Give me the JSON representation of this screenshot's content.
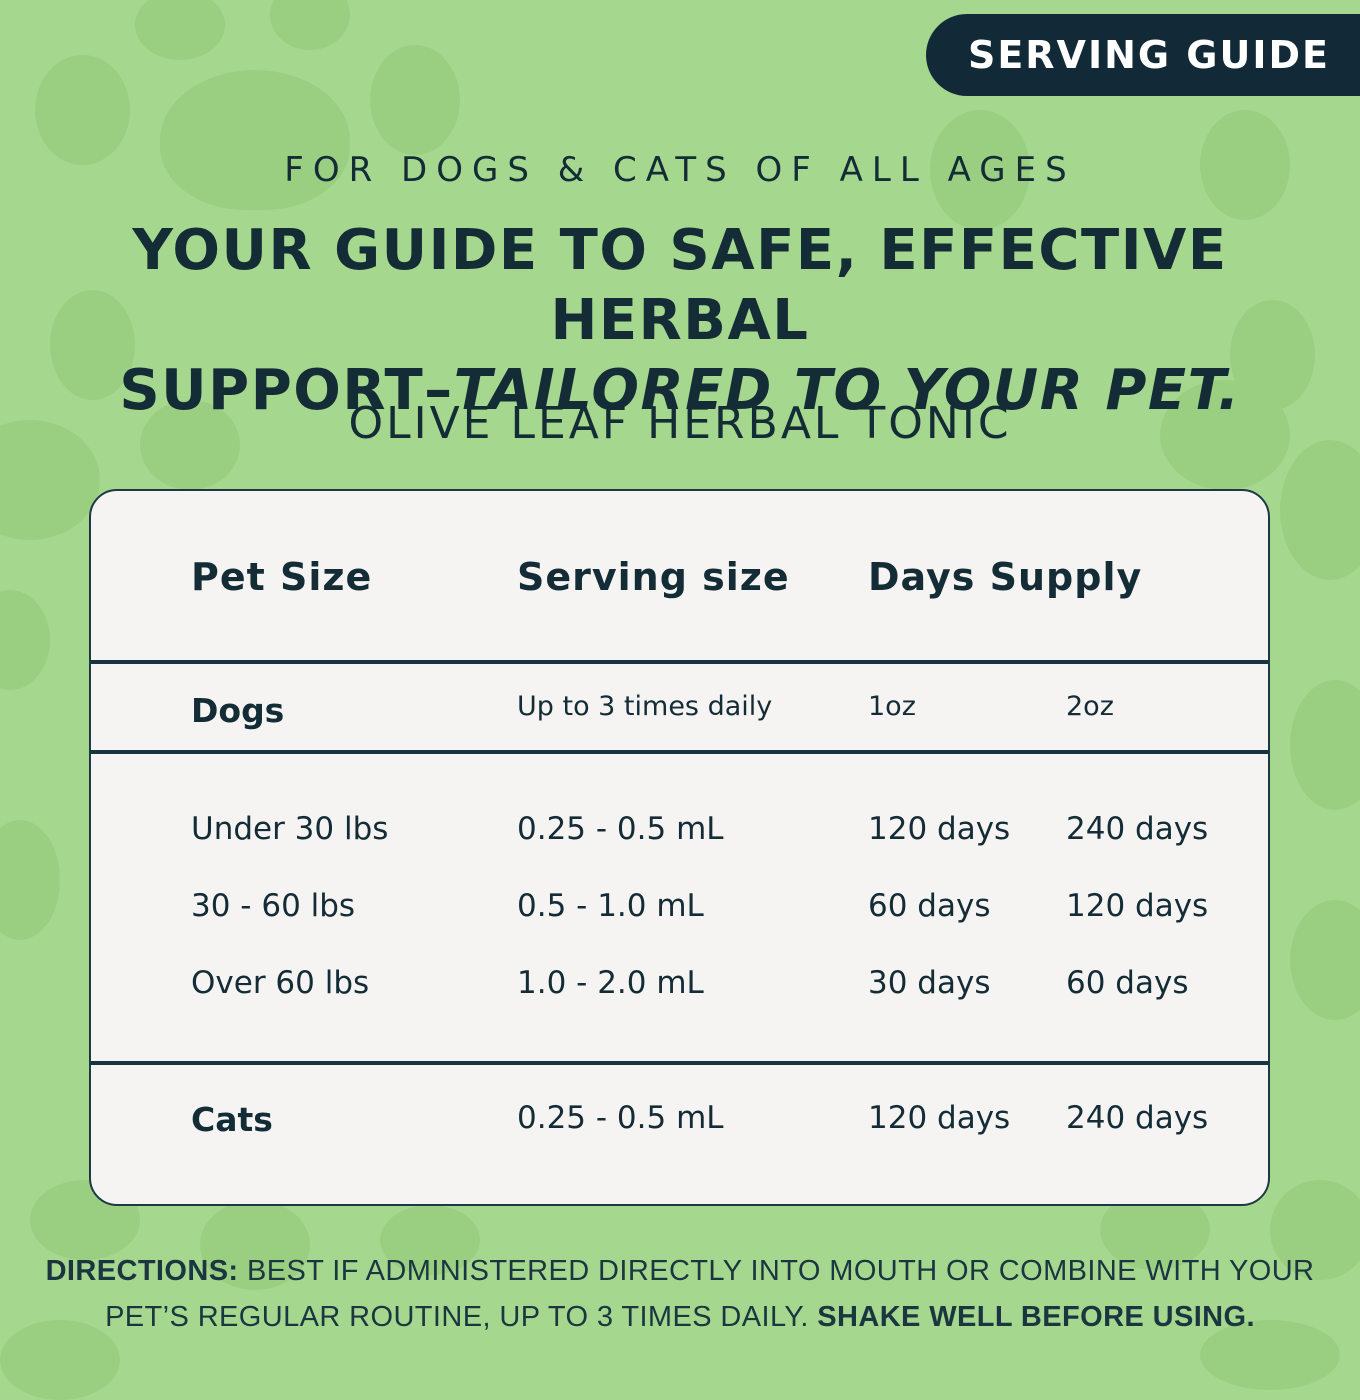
{
  "badge": {
    "label": "SERVING GUIDE"
  },
  "eyebrow": "FOR DOGS & CATS OF ALL AGES",
  "headline": {
    "line1": "YOUR GUIDE TO SAFE, EFFECTIVE HERBAL",
    "line2_plain": "SUPPORT",
    "line2_dash": "–",
    "line2_italic": "TAILORED TO YOUR PET."
  },
  "product_name": "OLIVE LEAF HERBAL TONIC",
  "table": {
    "headers": {
      "pet_size": "Pet Size",
      "serving_size": "Serving size",
      "days_supply": "Days Supply"
    },
    "dogs": {
      "label": "Dogs",
      "frequency": "Up to 3 times daily",
      "size_1": "1oz",
      "size_2": "2oz",
      "rows": [
        {
          "pet_size": "Under 30 lbs",
          "serving": "0.25 - 0.5 mL",
          "supply_1oz": "120 days",
          "supply_2oz": "240 days"
        },
        {
          "pet_size": "30 - 60 lbs",
          "serving": "0.5 - 1.0 mL",
          "supply_1oz": "60 days",
          "supply_2oz": "120 days"
        },
        {
          "pet_size": "Over 60 lbs",
          "serving": "1.0 - 2.0 mL",
          "supply_1oz": "30 days",
          "supply_2oz": "60 days"
        }
      ]
    },
    "cats": {
      "label": "Cats",
      "serving": "0.25 - 0.5 mL",
      "supply_1oz": "120 days",
      "supply_2oz": "240 days"
    }
  },
  "directions": {
    "label": "DIRECTIONS:",
    "text": "BEST IF ADMINISTERED DIRECTLY INTO MOUTH OR COMBINE WITH YOUR PET’S REGULAR ROUTINE, UP TO 3 TIMES DAILY.",
    "emphasis": "SHAKE WELL BEFORE USING."
  },
  "colors": {
    "background": "#a5d88e",
    "paw": "#9acf82",
    "ink": "#132c36",
    "badge": "#122a37",
    "card": "#f6f4f3"
  }
}
